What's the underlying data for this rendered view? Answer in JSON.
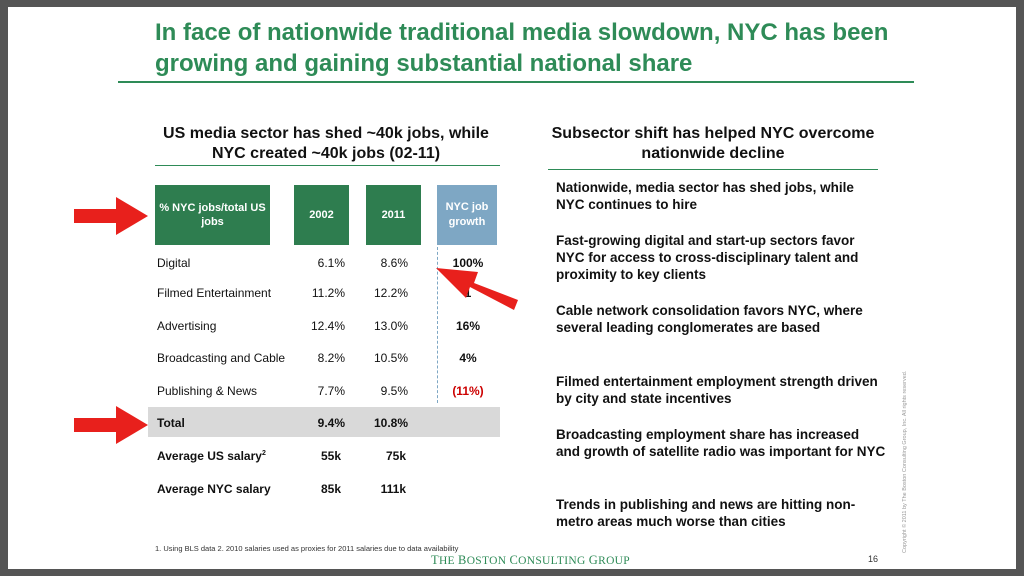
{
  "title": "In face of nationwide traditional media slowdown, NYC has been growing and gaining substantial national share",
  "left_subtitle": "US media sector has shed ~40k jobs, while NYC created ~40k jobs (02-11)",
  "right_subtitle": "Subsector shift has helped NYC overcome nationwide decline",
  "table": {
    "headers": {
      "label": "% NYC jobs/total US jobs",
      "y2002": "2002",
      "y2011": "2011",
      "growth": "NYC job growth"
    },
    "rows": [
      {
        "label": "Digital",
        "y2002": "6.1%",
        "y2011": "8.6%",
        "growth": "100%"
      },
      {
        "label": "Filmed Entertainment",
        "y2002": "11.2%",
        "y2011": "12.2%",
        "growth": "1"
      },
      {
        "label": "Advertising",
        "y2002": "12.4%",
        "y2011": "13.0%",
        "growth": "16%"
      },
      {
        "label": "Broadcasting and Cable",
        "y2002": "8.2%",
        "y2011": "10.5%",
        "growth": "4%"
      },
      {
        "label": "Publishing & News",
        "y2002": "7.7%",
        "y2011": "9.5%",
        "growth": "(11%)"
      }
    ],
    "total": {
      "label": "Total",
      "y2002": "9.4%",
      "y2011": "10.8%"
    },
    "salaries": [
      {
        "label": "Average US salary",
        "sup": "2",
        "y2002": "55k",
        "y2011": "75k"
      },
      {
        "label": "Average NYC salary",
        "sup": "",
        "y2002": "85k",
        "y2011": "111k"
      }
    ]
  },
  "bullets": [
    "Nationwide, media sector has shed jobs, while NYC continues to hire",
    "Fast-growing digital and start-up sectors favor NYC for access to cross-disciplinary talent and proximity to key clients",
    "Cable network consolidation favors NYC, where several leading conglomerates are based",
    "Filmed entertainment employment strength driven by city and state incentives",
    "Broadcasting employment share has increased and growth of satellite radio was important for NYC",
    "Trends in publishing and news are hitting non-metro areas much worse than cities"
  ],
  "footnote": "1. Using BLS data  2. 2010 salaries used as proxies for 2011 salaries due to data availability",
  "logo": "The Boston Consulting Group",
  "page_number": "16",
  "copyright": "Copyright © 2011 by The Boston Consulting Group, Inc. All rights reserved.",
  "colors": {
    "brand_green": "#2e8b57",
    "header_green": "#2e7d4f",
    "growth_blue": "#7ea7c4",
    "arrow_red": "#e8201c",
    "negative_red": "#cc0000"
  }
}
